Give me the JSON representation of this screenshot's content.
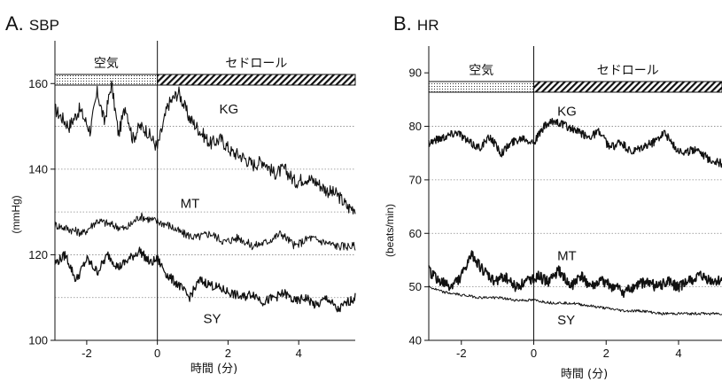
{
  "panels": [
    {
      "letter": "A.",
      "name": "SBP",
      "conditions": [
        "空気",
        "セドロール"
      ],
      "chart_data": {
        "type": "line",
        "title": "A. SBP",
        "xlabel": "時間 (分)",
        "ylabel": "(mmHg)",
        "xlim": [
          -2.9,
          5.6
        ],
        "ylim": [
          100,
          170
        ],
        "xticks": [
          -2,
          0,
          2,
          4
        ],
        "yticks": [
          100,
          120,
          140,
          160
        ],
        "yticklabels": [
          "100",
          "120",
          "140",
          "160"
        ],
        "grid": "horizontal-dotted",
        "gridlines": [
          110,
          120,
          130,
          140,
          150,
          160
        ],
        "stimulus_onset": 0,
        "series": [
          {
            "name": "KG",
            "label_x": 1.75,
            "label_y": 153,
            "x": [
              -2.9,
              -2.5,
              -2.2,
              -1.9,
              -1.7,
              -1.5,
              -1.3,
              -1.1,
              -0.9,
              -0.7,
              -0.5,
              -0.3,
              0,
              0.3,
              0.6,
              0.9,
              1.2,
              1.5,
              1.8,
              2.1,
              2.4,
              2.7,
              3,
              3.3,
              3.6,
              3.9,
              4.2,
              4.5,
              4.8,
              5.1,
              5.4,
              5.6
            ],
            "y": [
              154,
              150,
              154,
              149,
              158,
              151,
              160,
              148,
              155,
              147,
              150,
              149,
              145,
              155,
              158,
              152,
              149,
              146,
              147,
              144,
              143,
              141,
              142,
              139,
              140,
              137,
              138,
              137,
              135,
              134,
              131,
              131
            ]
          },
          {
            "name": "MT",
            "label_x": 0.65,
            "label_y": 131,
            "x": [
              -2.9,
              -2.5,
              -2.1,
              -1.7,
              -1.3,
              -0.9,
              -0.5,
              -0.1,
              0.3,
              0.7,
              1.1,
              1.5,
              1.9,
              2.3,
              2.7,
              3.1,
              3.5,
              3.9,
              4.3,
              4.7,
              5.1,
              5.6
            ],
            "y": [
              127,
              126,
              125,
              128,
              127,
              126,
              129,
              128,
              127,
              125,
              124,
              125,
              123,
              124,
              122,
              123,
              125,
              122,
              124,
              123,
              122,
              122
            ]
          },
          {
            "name": "SY",
            "label_x": 1.3,
            "label_y": 104,
            "x": [
              -2.9,
              -2.6,
              -2.3,
              -2,
              -1.7,
              -1.4,
              -1.1,
              -0.8,
              -0.5,
              -0.2,
              0,
              0.3,
              0.6,
              0.9,
              1.2,
              1.5,
              1.8,
              2.1,
              2.4,
              2.7,
              3,
              3.3,
              3.6,
              3.9,
              4.2,
              4.5,
              4.8,
              5.1,
              5.4,
              5.6
            ],
            "y": [
              118,
              120,
              114,
              119,
              116,
              120,
              117,
              119,
              121,
              118,
              119,
              115,
              113,
              110,
              114,
              113,
              112,
              111,
              110,
              111,
              109,
              110,
              111,
              109,
              110,
              108,
              110,
              107,
              109,
              110
            ]
          }
        ]
      }
    },
    {
      "letter": "B.",
      "name": "HR",
      "conditions": [
        "空気",
        "セドロール"
      ],
      "chart_data": {
        "type": "line",
        "title": "B. HR",
        "xlabel": "時間 (分)",
        "ylabel": "(beats/min)",
        "xlim": [
          -2.9,
          5.2
        ],
        "ylim": [
          40,
          95
        ],
        "xticks": [
          -2,
          0,
          2,
          4
        ],
        "yticks": [
          40,
          50,
          60,
          70,
          80,
          90
        ],
        "yticklabels": [
          "40",
          "50",
          "60",
          "70",
          "80",
          "90"
        ],
        "grid": "horizontal-dotted",
        "gridlines": [
          50,
          60,
          70,
          80
        ],
        "stimulus_onset": 0,
        "series": [
          {
            "name": "KG",
            "label_x": 0.65,
            "label_y": 82,
            "x": [
              -2.9,
              -2.5,
              -2.1,
              -1.8,
              -1.5,
              -1.2,
              -0.9,
              -0.6,
              -0.3,
              0,
              0.3,
              0.6,
              0.9,
              1.2,
              1.5,
              1.8,
              2.1,
              2.4,
              2.7,
              3,
              3.3,
              3.6,
              3.9,
              4.2,
              4.5,
              4.8,
              5.2
            ],
            "y": [
              77,
              78,
              79,
              77,
              76,
              78,
              75,
              77,
              78,
              77,
              80,
              81,
              80,
              79,
              78,
              79,
              76,
              77,
              75,
              76,
              77,
              79,
              76,
              75,
              76,
              74,
              73
            ]
          },
          {
            "name": "MT",
            "label_x": 0.65,
            "label_y": 55,
            "x": [
              -2.9,
              -2.6,
              -2.3,
              -2,
              -1.7,
              -1.4,
              -1.1,
              -0.8,
              -0.5,
              -0.2,
              0.1,
              0.4,
              0.7,
              1,
              1.3,
              1.6,
              1.9,
              2.2,
              2.5,
              2.8,
              3.1,
              3.4,
              3.7,
              4,
              4.3,
              4.6,
              4.9,
              5.2
            ],
            "y": [
              53,
              51,
              50,
              52,
              56,
              53,
              51,
              52,
              50,
              51,
              52,
              51,
              53,
              50,
              52,
              50,
              51,
              50,
              49,
              50,
              51,
              50,
              51,
              50,
              51,
              52,
              51,
              51
            ]
          },
          {
            "name": "SY",
            "label_x": 0.65,
            "label_y": 43,
            "x": [
              -2.9,
              -2.5,
              -2,
              -1.5,
              -1,
              -0.5,
              0,
              0.5,
              1,
              1.5,
              2,
              2.5,
              3,
              3.5,
              4,
              4.5,
              5.2
            ],
            "y": [
              50,
              49,
              48.5,
              48,
              48,
              47.5,
              47.5,
              47,
              47,
              46.5,
              46,
              45.5,
              45.5,
              45,
              45,
              45,
              45
            ]
          }
        ]
      }
    }
  ]
}
